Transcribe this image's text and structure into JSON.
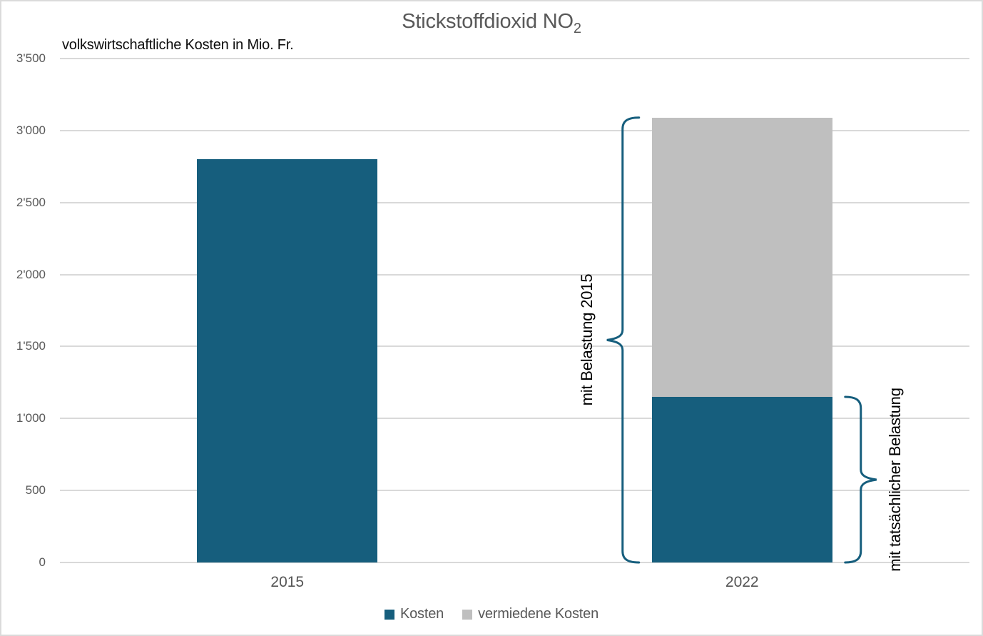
{
  "page": {
    "background": "#FFFFFF",
    "border_color": "#DBDBDB"
  },
  "title": {
    "text": "Stickstoffdioxid NO",
    "subscript": "2",
    "color": "#595959"
  },
  "subtitle": {
    "text": "volkswirtschaftliche Kosten in Mio. Fr.",
    "color": "#0d0d0d"
  },
  "chart_data": {
    "type": "bar",
    "stacked": true,
    "title": "Stickstoffdioxid NO2",
    "subtitle": "volkswirtschaftliche Kosten in Mio. Fr.",
    "unit": "Mio. Fr.",
    "categories": [
      "2015",
      "2022"
    ],
    "series": [
      {
        "name": "Kosten",
        "color": "#165E7D",
        "values": [
          2800,
          1150
        ]
      },
      {
        "name": "vermiedene Kosten",
        "color": "#BFBFBF",
        "values": [
          0,
          1940
        ]
      }
    ],
    "stack_totals": [
      2800,
      3090
    ],
    "ylim": [
      0,
      3500
    ],
    "ytick_step": 500,
    "ytick_labels": [
      "0",
      "500",
      "1'000",
      "1'500",
      "2'000",
      "2'500",
      "3'000",
      "3'500"
    ],
    "grid": true,
    "gridline_color": "#D9D9D9",
    "axis_text_color": "#595959",
    "legend_position": "bottom",
    "annotations": [
      {
        "label": "mit Belastung 2015",
        "side": "left",
        "category": "2022",
        "from": 0,
        "to": 3090,
        "color": "#165E7D"
      },
      {
        "label": "mit tatsächlicher Belastung",
        "side": "right",
        "category": "2022",
        "from": 0,
        "to": 1150,
        "color": "#165E7D"
      }
    ]
  },
  "legend": {
    "items": [
      {
        "label": "Kosten",
        "color": "#165E7D"
      },
      {
        "label": "vermiedene Kosten",
        "color": "#BFBFBF"
      }
    ]
  }
}
